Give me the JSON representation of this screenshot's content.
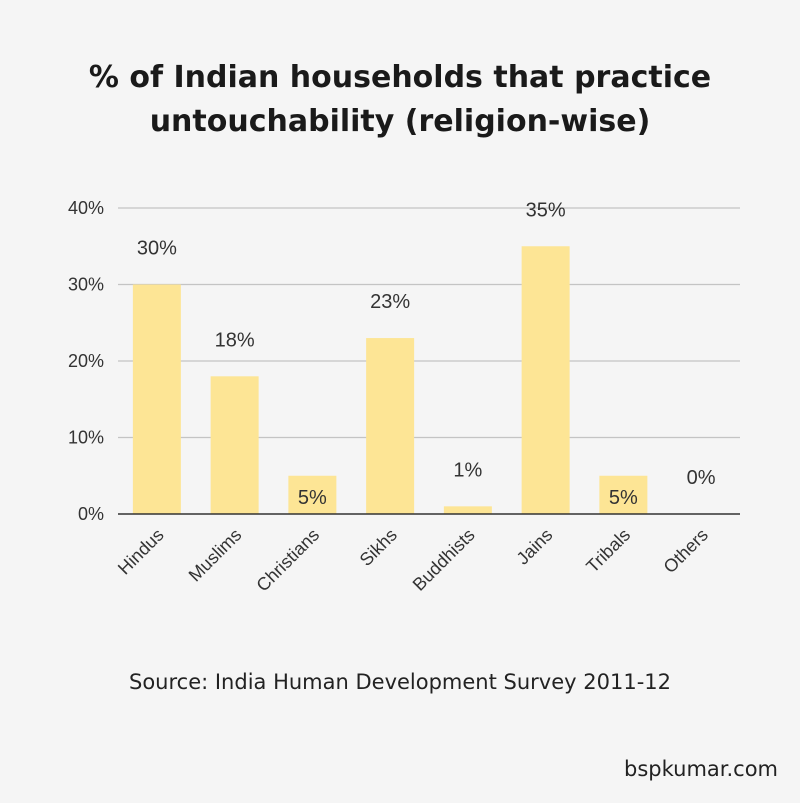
{
  "chart_data": {
    "type": "bar",
    "title_lines": [
      "% of Indian households that practice",
      "untouchability (religion-wise)"
    ],
    "categories": [
      "Hindus",
      "Muslims",
      "Christians",
      "Sikhs",
      "Buddhists",
      "Jains",
      "Tribals",
      "Others"
    ],
    "values": [
      30,
      18,
      5,
      23,
      1,
      35,
      5,
      0
    ],
    "data_labels": [
      "30%",
      "18%",
      "5%",
      "23%",
      "1%",
      "35%",
      "5%",
      "0%"
    ],
    "y_ticks": [
      0,
      10,
      20,
      30,
      40
    ],
    "y_tick_labels": [
      "0%",
      "10%",
      "20%",
      "30%",
      "40%"
    ],
    "ylim": [
      0,
      40
    ],
    "xlabel": "",
    "ylabel": "",
    "grid": true,
    "bar_color": "#fde595"
  },
  "source": "Source: India Human Development Survey 2011-12",
  "credit": "bspkumar.com"
}
